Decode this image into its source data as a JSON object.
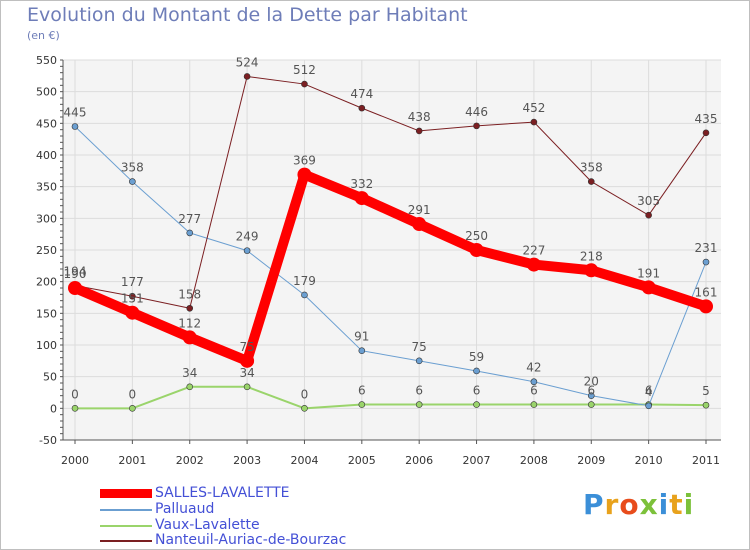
{
  "page": {
    "title": "Evolution du Montant de la Dette par Habitant",
    "unit": "(en €)",
    "logo": "Proxiti"
  },
  "colors": {
    "grid": "#dcdcdc",
    "axis": "#555555",
    "tick_text": "#333333",
    "label_text": "#555555",
    "background_panel": "#f4f4f4"
  },
  "chart_data": {
    "type": "line",
    "title": "Evolution du Montant de la Dette par Habitant",
    "subtitle": "(en €)",
    "x": [
      "2000",
      "2001",
      "2002",
      "2003",
      "2004",
      "2005",
      "2006",
      "2007",
      "2008",
      "2009",
      "2010",
      "2011"
    ],
    "ylim": [
      -50,
      550
    ],
    "yticks": [
      -50,
      0,
      50,
      100,
      150,
      200,
      250,
      300,
      350,
      400,
      450,
      500,
      550
    ],
    "grid": true,
    "legend_position": "bottom-left",
    "series": [
      {
        "name": "SALLES-LAVALETTE",
        "values": [
          190,
          151,
          112,
          75,
          369,
          332,
          291,
          250,
          227,
          218,
          191,
          161
        ],
        "labels": [
          "190",
          "151",
          "112",
          "75",
          "369",
          "332",
          "291",
          "250",
          "227",
          "218",
          "191",
          "161"
        ],
        "color": "#ff0000",
        "width": 10
      },
      {
        "name": "Palluaud",
        "values": [
          445,
          358,
          277,
          249,
          179,
          91,
          75,
          59,
          42,
          20,
          4,
          231
        ],
        "labels": [
          "445",
          "358",
          "277",
          "249",
          "179",
          "91",
          "75",
          "59",
          "42",
          "20",
          "4",
          "231"
        ],
        "color": "#6b9fd1",
        "width": 1
      },
      {
        "name": "Vaux-Lavalette",
        "values": [
          0,
          0,
          34,
          34,
          0,
          6,
          6,
          6,
          6,
          6,
          6,
          5
        ],
        "labels": [
          "0",
          "0",
          "34",
          "34",
          "0",
          "6",
          "6",
          "6",
          "6",
          "6",
          "6",
          "5"
        ],
        "color": "#9ad46b",
        "width": 2
      },
      {
        "name": "Nanteuil-Auriac-de-Bourzac",
        "values": [
          194,
          177,
          158,
          524,
          512,
          474,
          438,
          446,
          452,
          358,
          305,
          435
        ],
        "labels": [
          "194",
          "177",
          "158",
          "524",
          "512",
          "474",
          "438",
          "446",
          "452",
          "358",
          "305",
          "435"
        ],
        "color": "#7b1f22",
        "width": 1
      }
    ]
  }
}
